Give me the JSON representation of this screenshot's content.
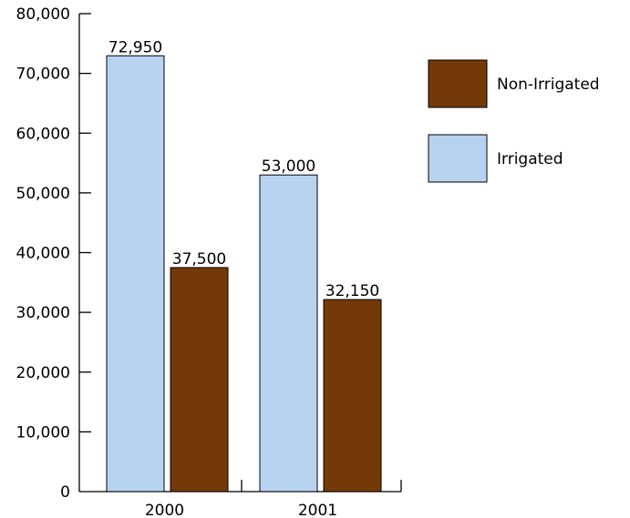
{
  "chart_data": {
    "type": "bar",
    "categories": [
      "2000",
      "2001"
    ],
    "series": [
      {
        "name": "Irrigated",
        "color": "#b7d3f0",
        "values": [
          72950,
          53000
        ],
        "labels": [
          "72,950",
          "53,000"
        ]
      },
      {
        "name": "Non-Irrigated",
        "color": "#733a08",
        "values": [
          37500,
          32150
        ],
        "labels": [
          "37,500",
          "32,150"
        ]
      }
    ],
    "ylim": [
      0,
      80000
    ],
    "yticks": [
      0,
      10000,
      20000,
      30000,
      40000,
      50000,
      60000,
      70000,
      80000
    ],
    "ytick_labels": [
      "0",
      "10,000",
      "20,000",
      "30,000",
      "40,000",
      "50,000",
      "60,000",
      "70,000",
      "80,000"
    ],
    "legend": {
      "placement": "right",
      "items": [
        {
          "name": "Non-Irrigated",
          "color": "#733a08"
        },
        {
          "name": "Irrigated",
          "color": "#b7d3f0"
        }
      ]
    },
    "grid": false
  }
}
